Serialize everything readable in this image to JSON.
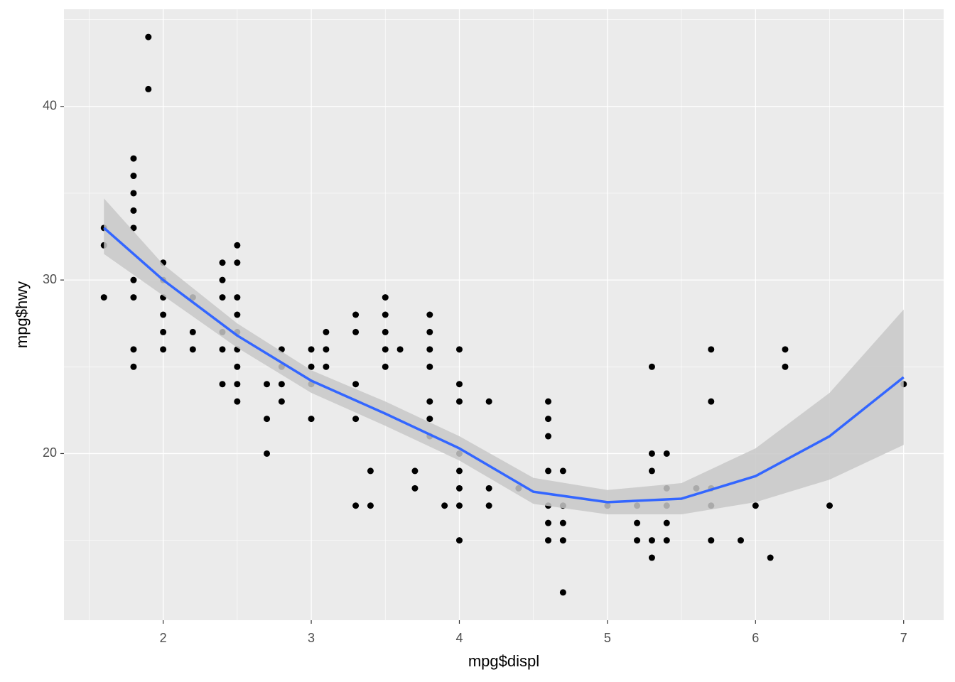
{
  "chart_data": {
    "type": "scatter",
    "x_label": "mpg$displ",
    "y_label": "mpg$hwy",
    "color": "#000000",
    "x": [
      1.6,
      1.6,
      1.6,
      1.8,
      1.8,
      1.8,
      1.8,
      1.8,
      1.8,
      1.8,
      1.8,
      1.8,
      1.9,
      1.9,
      2.0,
      2.0,
      2.0,
      2.0,
      2.0,
      2.0,
      2.2,
      2.2,
      2.2,
      2.4,
      2.4,
      2.4,
      2.4,
      2.4,
      2.4,
      2.5,
      2.5,
      2.5,
      2.5,
      2.5,
      2.5,
      2.5,
      2.5,
      2.5,
      2.7,
      2.7,
      2.7,
      2.8,
      2.8,
      2.8,
      2.8,
      3.0,
      3.0,
      3.0,
      3.0,
      3.1,
      3.1,
      3.1,
      3.3,
      3.3,
      3.3,
      3.3,
      3.3,
      3.4,
      3.4,
      3.5,
      3.5,
      3.5,
      3.5,
      3.5,
      3.6,
      3.7,
      3.7,
      3.8,
      3.8,
      3.8,
      3.8,
      3.8,
      3.8,
      3.8,
      3.9,
      4.0,
      4.0,
      4.0,
      4.0,
      4.0,
      4.0,
      4.0,
      4.0,
      4.2,
      4.2,
      4.2,
      4.4,
      4.6,
      4.6,
      4.6,
      4.6,
      4.6,
      4.6,
      4.6,
      4.7,
      4.7,
      4.7,
      4.7,
      4.7,
      5.0,
      5.2,
      5.2,
      5.2,
      5.3,
      5.3,
      5.3,
      5.3,
      5.3,
      5.4,
      5.4,
      5.4,
      5.4,
      5.4,
      5.6,
      5.7,
      5.7,
      5.7,
      5.7,
      5.7,
      5.9,
      6.0,
      6.1,
      6.2,
      6.2,
      6.5,
      7.0
    ],
    "values": [
      33,
      32,
      29,
      37,
      36,
      35,
      34,
      33,
      30,
      29,
      26,
      25,
      44,
      41,
      31,
      30,
      29,
      28,
      27,
      26,
      29,
      27,
      26,
      31,
      30,
      29,
      27,
      26,
      24,
      32,
      31,
      29,
      28,
      27,
      26,
      25,
      24,
      23,
      24,
      22,
      20,
      26,
      25,
      24,
      23,
      26,
      25,
      24,
      22,
      27,
      26,
      25,
      28,
      27,
      24,
      22,
      17,
      19,
      17,
      29,
      28,
      27,
      26,
      25,
      26,
      19,
      18,
      28,
      27,
      26,
      25,
      23,
      22,
      21,
      17,
      26,
      24,
      23,
      20,
      19,
      18,
      17,
      15,
      23,
      18,
      17,
      18,
      23,
      22,
      21,
      19,
      17,
      16,
      15,
      19,
      17,
      16,
      15,
      12,
      17,
      17,
      16,
      15,
      25,
      20,
      19,
      15,
      14,
      20,
      18,
      17,
      16,
      15,
      18,
      26,
      23,
      18,
      17,
      15,
      15,
      17,
      14,
      26,
      25,
      17,
      24
    ],
    "smooth": {
      "color": "#3366ff",
      "band_color": "#c8c8c8",
      "x": [
        1.6,
        2.0,
        2.5,
        3.0,
        3.5,
        4.0,
        4.5,
        5.0,
        5.5,
        6.0,
        6.5,
        7.0
      ],
      "values": [
        33.0,
        30.0,
        26.8,
        24.2,
        22.3,
        20.3,
        17.8,
        17.2,
        17.4,
        18.7,
        21.0,
        24.4
      ],
      "upper": [
        34.7,
        30.9,
        27.5,
        24.8,
        23.0,
        21.0,
        18.6,
        17.9,
        18.3,
        20.3,
        23.5,
        28.3
      ],
      "lower": [
        31.5,
        29.1,
        26.1,
        23.5,
        21.6,
        19.6,
        17.1,
        16.5,
        16.5,
        17.2,
        18.5,
        20.5
      ]
    },
    "xlim": [
      1.33,
      7.27
    ],
    "ylim": [
      10.4,
      45.6
    ],
    "xticks": [
      2,
      3,
      4,
      5,
      6,
      7
    ],
    "yticks": [
      20,
      30,
      40
    ],
    "xminor": [
      1.5,
      2.5,
      3.5,
      4.5,
      5.5,
      6.5
    ],
    "yminor": [
      15,
      25,
      35,
      45
    ],
    "grid": true
  }
}
